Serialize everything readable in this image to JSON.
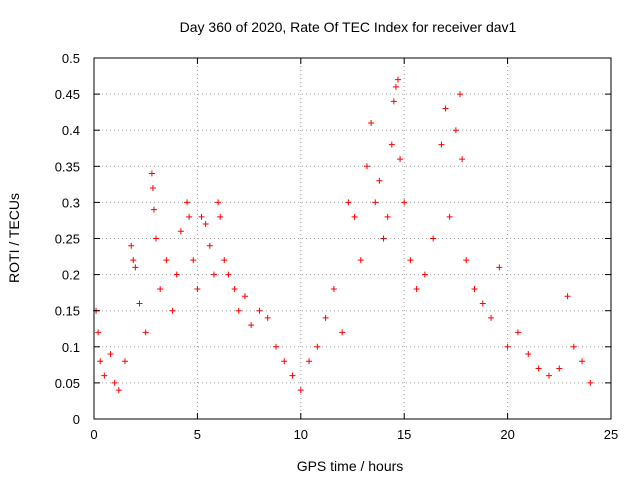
{
  "chart_data": {
    "type": "scatter",
    "title": "Day 360 of 2020, Rate Of TEC Index for receiver dav1",
    "xlabel": "GPS time / hours",
    "ylabel": "ROTI / TECUs",
    "xlim": [
      0,
      25
    ],
    "ylim": [
      0,
      0.5
    ],
    "xticks": [
      0,
      5,
      10,
      15,
      20,
      25
    ],
    "yticks": [
      0,
      0.05,
      0.1,
      0.15,
      0.2,
      0.25,
      0.3,
      0.35,
      0.4,
      0.45,
      0.5
    ],
    "xtick_labels": [
      "0",
      "5",
      "10",
      "15",
      "20",
      "25"
    ],
    "ytick_labels": [
      "0",
      "0.05",
      "0.1",
      "0.15",
      "0.2",
      "0.25",
      "0.3",
      "0.35",
      "0.4",
      "0.45",
      "0.5"
    ],
    "grid": true,
    "marker": "+",
    "color": "#ff0000",
    "series": [
      {
        "points": [
          [
            0.1,
            0.15
          ],
          [
            0.2,
            0.12
          ],
          [
            0.3,
            0.08
          ],
          [
            0.5,
            0.06
          ],
          [
            0.8,
            0.09
          ],
          [
            1.0,
            0.05
          ],
          [
            1.2,
            0.04
          ],
          [
            1.5,
            0.08
          ],
          [
            1.8,
            0.24
          ],
          [
            1.9,
            0.22
          ],
          [
            2.0,
            0.21
          ],
          [
            2.2,
            0.16
          ],
          [
            2.5,
            0.12
          ],
          [
            2.8,
            0.34
          ],
          [
            2.85,
            0.32
          ],
          [
            2.9,
            0.29
          ],
          [
            3.0,
            0.25
          ],
          [
            3.2,
            0.18
          ],
          [
            3.5,
            0.22
          ],
          [
            3.8,
            0.15
          ],
          [
            4.0,
            0.2
          ],
          [
            4.2,
            0.26
          ],
          [
            4.5,
            0.3
          ],
          [
            4.6,
            0.28
          ],
          [
            4.8,
            0.22
          ],
          [
            5.0,
            0.18
          ],
          [
            5.2,
            0.28
          ],
          [
            5.4,
            0.27
          ],
          [
            5.6,
            0.24
          ],
          [
            5.8,
            0.2
          ],
          [
            6.0,
            0.3
          ],
          [
            6.1,
            0.28
          ],
          [
            6.3,
            0.22
          ],
          [
            6.5,
            0.2
          ],
          [
            6.8,
            0.18
          ],
          [
            7.0,
            0.15
          ],
          [
            7.3,
            0.17
          ],
          [
            7.6,
            0.13
          ],
          [
            8.0,
            0.15
          ],
          [
            8.4,
            0.14
          ],
          [
            8.8,
            0.1
          ],
          [
            9.2,
            0.08
          ],
          [
            9.6,
            0.06
          ],
          [
            10.0,
            0.04
          ],
          [
            10.4,
            0.08
          ],
          [
            10.8,
            0.1
          ],
          [
            11.2,
            0.14
          ],
          [
            11.6,
            0.18
          ],
          [
            12.0,
            0.12
          ],
          [
            12.3,
            0.3
          ],
          [
            12.6,
            0.28
          ],
          [
            12.9,
            0.22
          ],
          [
            13.2,
            0.35
          ],
          [
            13.4,
            0.41
          ],
          [
            13.6,
            0.3
          ],
          [
            13.8,
            0.33
          ],
          [
            14.0,
            0.25
          ],
          [
            14.2,
            0.28
          ],
          [
            14.4,
            0.38
          ],
          [
            14.5,
            0.44
          ],
          [
            14.6,
            0.46
          ],
          [
            14.7,
            0.47
          ],
          [
            14.8,
            0.36
          ],
          [
            15.0,
            0.3
          ],
          [
            15.3,
            0.22
          ],
          [
            15.6,
            0.18
          ],
          [
            16.0,
            0.2
          ],
          [
            16.4,
            0.25
          ],
          [
            16.8,
            0.38
          ],
          [
            17.0,
            0.43
          ],
          [
            17.2,
            0.28
          ],
          [
            17.5,
            0.4
          ],
          [
            17.7,
            0.45
          ],
          [
            17.8,
            0.36
          ],
          [
            18.0,
            0.22
          ],
          [
            18.4,
            0.18
          ],
          [
            18.8,
            0.16
          ],
          [
            19.2,
            0.14
          ],
          [
            19.6,
            0.21
          ],
          [
            20.0,
            0.1
          ],
          [
            20.5,
            0.12
          ],
          [
            21.0,
            0.09
          ],
          [
            21.5,
            0.07
          ],
          [
            22.0,
            0.06
          ],
          [
            22.5,
            0.07
          ],
          [
            22.9,
            0.17
          ],
          [
            23.2,
            0.1
          ],
          [
            23.6,
            0.08
          ],
          [
            24.0,
            0.05
          ]
        ]
      }
    ]
  }
}
